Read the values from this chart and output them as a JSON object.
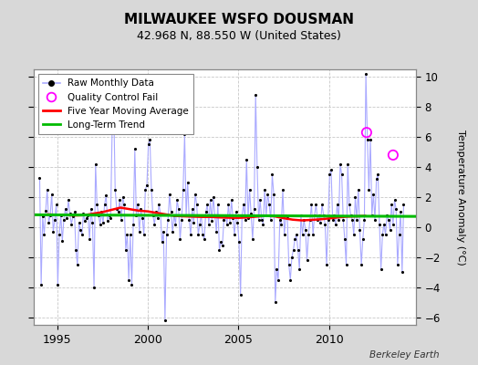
{
  "title": "MILWAUKEE WSFO DOUSMAN",
  "subtitle": "42.968 N, 88.550 W (United States)",
  "ylabel": "Temperature Anomaly (°C)",
  "credit": "Berkeley Earth",
  "xlim": [
    1993.7,
    2014.8
  ],
  "ylim": [
    -6.5,
    10.5
  ],
  "yticks_left": [
    -6,
    -4,
    -2,
    0,
    2,
    4,
    6,
    8,
    10
  ],
  "yticks_right": [
    -6,
    -4,
    -2,
    0,
    2,
    4,
    6,
    8,
    10
  ],
  "xticks": [
    1995,
    2000,
    2005,
    2010
  ],
  "bg_color": "#d8d8d8",
  "plot_bg_color": "#ffffff",
  "grid_color": "#c8c8c8",
  "raw_line_color": "#aaaaff",
  "raw_marker_color": "#000000",
  "ma_color": "#ff0000",
  "trend_color": "#00bb00",
  "qc_fail_color": "#ff00ff",
  "long_term_trend_y0": 0.82,
  "long_term_trend_slope": -0.005,
  "raw_data": [
    [
      1994.042,
      3.3
    ],
    [
      1994.125,
      -3.8
    ],
    [
      1994.208,
      0.7
    ],
    [
      1994.292,
      -0.5
    ],
    [
      1994.375,
      1.1
    ],
    [
      1994.458,
      2.5
    ],
    [
      1994.542,
      0.3
    ],
    [
      1994.625,
      0.8
    ],
    [
      1994.708,
      2.2
    ],
    [
      1994.792,
      -0.3
    ],
    [
      1994.875,
      0.5
    ],
    [
      1994.958,
      1.5
    ],
    [
      1995.042,
      -3.8
    ],
    [
      1995.125,
      -0.5
    ],
    [
      1995.208,
      0.8
    ],
    [
      1995.292,
      -0.9
    ],
    [
      1995.375,
      0.5
    ],
    [
      1995.458,
      1.2
    ],
    [
      1995.542,
      0.6
    ],
    [
      1995.625,
      1.8
    ],
    [
      1995.708,
      0.9
    ],
    [
      1995.792,
      0.2
    ],
    [
      1995.875,
      0.7
    ],
    [
      1995.958,
      1.0
    ],
    [
      1996.042,
      -1.5
    ],
    [
      1996.125,
      -2.5
    ],
    [
      1996.208,
      0.3
    ],
    [
      1996.292,
      -0.2
    ],
    [
      1996.375,
      -0.5
    ],
    [
      1996.458,
      0.9
    ],
    [
      1996.542,
      0.4
    ],
    [
      1996.625,
      0.6
    ],
    [
      1996.708,
      0.8
    ],
    [
      1996.792,
      -0.8
    ],
    [
      1996.875,
      1.2
    ],
    [
      1996.958,
      0.3
    ],
    [
      1997.042,
      -4.0
    ],
    [
      1997.125,
      4.2
    ],
    [
      1997.208,
      1.5
    ],
    [
      1997.292,
      0.8
    ],
    [
      1997.375,
      0.2
    ],
    [
      1997.458,
      1.0
    ],
    [
      1997.542,
      0.3
    ],
    [
      1997.625,
      1.5
    ],
    [
      1997.708,
      2.1
    ],
    [
      1997.792,
      0.4
    ],
    [
      1997.875,
      0.8
    ],
    [
      1997.958,
      0.6
    ],
    [
      1998.042,
      6.5
    ],
    [
      1998.125,
      8.5
    ],
    [
      1998.208,
      2.5
    ],
    [
      1998.292,
      1.2
    ],
    [
      1998.375,
      1.0
    ],
    [
      1998.458,
      1.8
    ],
    [
      1998.542,
      0.5
    ],
    [
      1998.625,
      2.0
    ],
    [
      1998.708,
      1.5
    ],
    [
      1998.792,
      -1.5
    ],
    [
      1998.875,
      -0.5
    ],
    [
      1998.958,
      -3.5
    ],
    [
      1999.042,
      -0.5
    ],
    [
      1999.125,
      -3.8
    ],
    [
      1999.208,
      0.2
    ],
    [
      1999.292,
      5.2
    ],
    [
      1999.375,
      0.8
    ],
    [
      1999.458,
      1.5
    ],
    [
      1999.542,
      -0.3
    ],
    [
      1999.625,
      1.2
    ],
    [
      1999.708,
      0.6
    ],
    [
      1999.792,
      -0.5
    ],
    [
      1999.875,
      2.5
    ],
    [
      1999.958,
      2.8
    ],
    [
      2000.042,
      5.5
    ],
    [
      2000.125,
      5.8
    ],
    [
      2000.208,
      2.5
    ],
    [
      2000.292,
      0.8
    ],
    [
      2000.375,
      0.2
    ],
    [
      2000.458,
      1.0
    ],
    [
      2000.542,
      0.6
    ],
    [
      2000.625,
      1.5
    ],
    [
      2000.708,
      0.9
    ],
    [
      2000.792,
      -1.0
    ],
    [
      2000.875,
      -0.3
    ],
    [
      2000.958,
      -6.2
    ],
    [
      2001.042,
      -0.5
    ],
    [
      2001.125,
      0.5
    ],
    [
      2001.208,
      2.2
    ],
    [
      2001.292,
      1.0
    ],
    [
      2001.375,
      -0.3
    ],
    [
      2001.458,
      0.8
    ],
    [
      2001.542,
      0.2
    ],
    [
      2001.625,
      1.8
    ],
    [
      2001.708,
      1.2
    ],
    [
      2001.792,
      -0.8
    ],
    [
      2001.875,
      0.5
    ],
    [
      2001.958,
      2.5
    ],
    [
      2002.042,
      6.2
    ],
    [
      2002.125,
      0.8
    ],
    [
      2002.208,
      3.0
    ],
    [
      2002.292,
      0.5
    ],
    [
      2002.375,
      -0.5
    ],
    [
      2002.458,
      1.2
    ],
    [
      2002.542,
      0.3
    ],
    [
      2002.625,
      2.2
    ],
    [
      2002.708,
      1.5
    ],
    [
      2002.792,
      -0.5
    ],
    [
      2002.875,
      0.2
    ],
    [
      2002.958,
      0.8
    ],
    [
      2003.042,
      -0.5
    ],
    [
      2003.125,
      -0.8
    ],
    [
      2003.208,
      1.0
    ],
    [
      2003.292,
      1.5
    ],
    [
      2003.375,
      0.2
    ],
    [
      2003.458,
      1.8
    ],
    [
      2003.542,
      0.4
    ],
    [
      2003.625,
      2.0
    ],
    [
      2003.708,
      0.8
    ],
    [
      2003.792,
      -0.3
    ],
    [
      2003.875,
      1.5
    ],
    [
      2003.958,
      -1.5
    ],
    [
      2004.042,
      -1.0
    ],
    [
      2004.125,
      -1.2
    ],
    [
      2004.208,
      0.5
    ],
    [
      2004.292,
      0.8
    ],
    [
      2004.375,
      0.2
    ],
    [
      2004.458,
      1.5
    ],
    [
      2004.542,
      0.3
    ],
    [
      2004.625,
      1.8
    ],
    [
      2004.708,
      0.6
    ],
    [
      2004.792,
      -0.5
    ],
    [
      2004.875,
      1.0
    ],
    [
      2004.958,
      0.3
    ],
    [
      2005.042,
      -1.0
    ],
    [
      2005.125,
      -4.5
    ],
    [
      2005.208,
      0.8
    ],
    [
      2005.292,
      1.5
    ],
    [
      2005.375,
      0.5
    ],
    [
      2005.458,
      4.5
    ],
    [
      2005.542,
      0.6
    ],
    [
      2005.625,
      2.5
    ],
    [
      2005.708,
      0.9
    ],
    [
      2005.792,
      -0.8
    ],
    [
      2005.875,
      1.2
    ],
    [
      2005.958,
      8.8
    ],
    [
      2006.042,
      4.0
    ],
    [
      2006.125,
      0.5
    ],
    [
      2006.208,
      1.8
    ],
    [
      2006.292,
      0.5
    ],
    [
      2006.375,
      0.2
    ],
    [
      2006.458,
      2.5
    ],
    [
      2006.542,
      0.8
    ],
    [
      2006.625,
      2.2
    ],
    [
      2006.708,
      1.5
    ],
    [
      2006.792,
      0.5
    ],
    [
      2006.875,
      3.5
    ],
    [
      2006.958,
      2.2
    ],
    [
      2007.042,
      -5.0
    ],
    [
      2007.125,
      -2.8
    ],
    [
      2007.208,
      -3.5
    ],
    [
      2007.292,
      0.5
    ],
    [
      2007.375,
      0.2
    ],
    [
      2007.458,
      2.5
    ],
    [
      2007.542,
      -0.5
    ],
    [
      2007.625,
      0.8
    ],
    [
      2007.708,
      0.6
    ],
    [
      2007.792,
      -2.5
    ],
    [
      2007.875,
      -3.5
    ],
    [
      2007.958,
      -2.0
    ],
    [
      2008.042,
      -1.5
    ],
    [
      2008.125,
      -0.8
    ],
    [
      2008.208,
      -0.5
    ],
    [
      2008.292,
      -1.5
    ],
    [
      2008.375,
      -2.8
    ],
    [
      2008.458,
      0.8
    ],
    [
      2008.542,
      -0.5
    ],
    [
      2008.625,
      0.5
    ],
    [
      2008.708,
      -0.2
    ],
    [
      2008.792,
      -2.2
    ],
    [
      2008.875,
      -0.5
    ],
    [
      2008.958,
      0.5
    ],
    [
      2009.042,
      1.5
    ],
    [
      2009.125,
      -0.5
    ],
    [
      2009.208,
      0.8
    ],
    [
      2009.292,
      1.5
    ],
    [
      2009.375,
      0.5
    ],
    [
      2009.458,
      0.8
    ],
    [
      2009.542,
      0.3
    ],
    [
      2009.625,
      1.5
    ],
    [
      2009.708,
      0.8
    ],
    [
      2009.792,
      0.2
    ],
    [
      2009.875,
      -2.5
    ],
    [
      2009.958,
      0.5
    ],
    [
      2010.042,
      3.5
    ],
    [
      2010.125,
      3.8
    ],
    [
      2010.208,
      0.5
    ],
    [
      2010.292,
      0.8
    ],
    [
      2010.375,
      0.2
    ],
    [
      2010.458,
      1.5
    ],
    [
      2010.542,
      0.5
    ],
    [
      2010.625,
      4.2
    ],
    [
      2010.708,
      3.5
    ],
    [
      2010.792,
      0.5
    ],
    [
      2010.875,
      -0.8
    ],
    [
      2010.958,
      -2.5
    ],
    [
      2011.042,
      4.2
    ],
    [
      2011.125,
      1.5
    ],
    [
      2011.208,
      0.8
    ],
    [
      2011.292,
      0.5
    ],
    [
      2011.375,
      -0.5
    ],
    [
      2011.458,
      2.0
    ],
    [
      2011.542,
      0.5
    ],
    [
      2011.625,
      2.5
    ],
    [
      2011.708,
      -0.2
    ],
    [
      2011.792,
      -2.5
    ],
    [
      2011.875,
      -0.8
    ],
    [
      2011.958,
      0.5
    ],
    [
      2012.042,
      10.2
    ],
    [
      2012.125,
      5.8
    ],
    [
      2012.208,
      2.5
    ],
    [
      2012.292,
      5.8
    ],
    [
      2012.375,
      0.8
    ],
    [
      2012.458,
      2.2
    ],
    [
      2012.542,
      0.5
    ],
    [
      2012.625,
      3.2
    ],
    [
      2012.708,
      3.5
    ],
    [
      2012.792,
      0.2
    ],
    [
      2012.875,
      -2.8
    ],
    [
      2012.958,
      -0.5
    ],
    [
      2013.042,
      0.2
    ],
    [
      2013.125,
      -0.5
    ],
    [
      2013.208,
      0.8
    ],
    [
      2013.292,
      0.5
    ],
    [
      2013.375,
      -0.2
    ],
    [
      2013.458,
      1.5
    ],
    [
      2013.542,
      0.2
    ],
    [
      2013.625,
      1.8
    ],
    [
      2013.708,
      1.2
    ],
    [
      2013.792,
      -2.5
    ],
    [
      2013.875,
      -0.5
    ],
    [
      2013.958,
      1.0
    ],
    [
      2014.042,
      -3.0
    ],
    [
      2014.125,
      1.5
    ]
  ],
  "qc_fail_points": [
    [
      2012.083,
      6.3
    ],
    [
      2013.542,
      4.8
    ]
  ],
  "moving_avg": [
    [
      1994.5,
      0.85
    ],
    [
      1995.0,
      0.82
    ],
    [
      1995.5,
      0.8
    ],
    [
      1996.0,
      0.78
    ],
    [
      1996.5,
      0.8
    ],
    [
      1997.0,
      0.9
    ],
    [
      1997.5,
      1.0
    ],
    [
      1998.0,
      1.15
    ],
    [
      1998.5,
      1.3
    ],
    [
      1999.0,
      1.2
    ],
    [
      1999.5,
      1.1
    ],
    [
      2000.0,
      1.05
    ],
    [
      2000.5,
      0.95
    ],
    [
      2001.0,
      0.85
    ],
    [
      2001.5,
      0.75
    ],
    [
      2002.0,
      0.72
    ],
    [
      2002.5,
      0.7
    ],
    [
      2003.0,
      0.68
    ],
    [
      2003.5,
      0.68
    ],
    [
      2004.0,
      0.65
    ],
    [
      2004.5,
      0.63
    ],
    [
      2005.0,
      0.62
    ],
    [
      2005.5,
      0.65
    ],
    [
      2006.0,
      0.7
    ],
    [
      2006.5,
      0.75
    ],
    [
      2007.0,
      0.72
    ],
    [
      2007.5,
      0.6
    ],
    [
      2008.0,
      0.5
    ],
    [
      2008.5,
      0.45
    ],
    [
      2009.0,
      0.48
    ],
    [
      2009.5,
      0.52
    ],
    [
      2010.0,
      0.58
    ],
    [
      2010.5,
      0.65
    ],
    [
      2011.0,
      0.7
    ],
    [
      2011.5,
      0.72
    ],
    [
      2012.0,
      0.75
    ]
  ]
}
